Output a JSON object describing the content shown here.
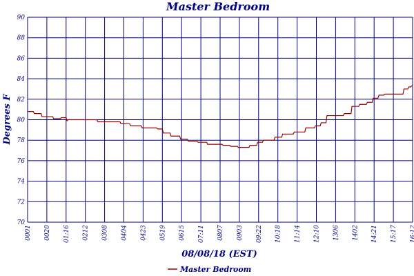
{
  "chart_data": {
    "type": "line",
    "title": "Master Bedroom",
    "xlabel": "08/08/18 (EST)",
    "ylabel": "Degrees F",
    "ylim": [
      70,
      90
    ],
    "yticks": [
      "70",
      "72",
      "74",
      "76",
      "78",
      "80",
      "82",
      "84",
      "86",
      "88",
      "90"
    ],
    "categories": [
      "0001",
      "0020",
      "01:16",
      "0212",
      "0308",
      "0404",
      "0423",
      "0519",
      "0615",
      "07:11",
      "0807",
      "0903",
      "09:22",
      "10:18",
      "11:14",
      "12:10",
      "1306",
      "1402",
      "14:21",
      "15:17",
      "16:12"
    ],
    "grid": true,
    "legend_position": "bottom-center",
    "colors": {
      "line": "#990000",
      "grid": "#000080",
      "text": "#000080"
    },
    "series": [
      {
        "name": "Master Bedroom",
        "values": [
          [
            0.0,
            80.8
          ],
          [
            0.3,
            80.8
          ],
          [
            0.35,
            80.6
          ],
          [
            0.7,
            80.6
          ],
          [
            0.75,
            80.3
          ],
          [
            1.3,
            80.3
          ],
          [
            1.35,
            80.1
          ],
          [
            1.7,
            80.1
          ],
          [
            1.75,
            80.2
          ],
          [
            2.0,
            80.2
          ],
          [
            2.05,
            79.9
          ],
          [
            2.1,
            80.0
          ],
          [
            3.6,
            80.0
          ],
          [
            3.65,
            79.8
          ],
          [
            4.8,
            79.8
          ],
          [
            4.85,
            79.6
          ],
          [
            5.3,
            79.6
          ],
          [
            5.35,
            79.4
          ],
          [
            5.9,
            79.4
          ],
          [
            5.95,
            79.2
          ],
          [
            6.7,
            79.2
          ],
          [
            6.75,
            79.1
          ],
          [
            7.0,
            79.1
          ],
          [
            7.05,
            78.7
          ],
          [
            7.4,
            78.7
          ],
          [
            7.45,
            78.4
          ],
          [
            7.9,
            78.4
          ],
          [
            7.95,
            78.1
          ],
          [
            8.3,
            78.1
          ],
          [
            8.35,
            77.9
          ],
          [
            8.8,
            77.9
          ],
          [
            8.85,
            77.8
          ],
          [
            9.3,
            77.8
          ],
          [
            9.35,
            77.6
          ],
          [
            10.1,
            77.6
          ],
          [
            10.15,
            77.5
          ],
          [
            10.5,
            77.5
          ],
          [
            10.55,
            77.4
          ],
          [
            10.9,
            77.4
          ],
          [
            10.95,
            77.3
          ],
          [
            11.5,
            77.3
          ],
          [
            11.55,
            77.5
          ],
          [
            11.9,
            77.5
          ],
          [
            11.95,
            77.8
          ],
          [
            12.2,
            77.8
          ],
          [
            12.25,
            78.0
          ],
          [
            12.8,
            78.0
          ],
          [
            12.85,
            78.3
          ],
          [
            13.2,
            78.3
          ],
          [
            13.25,
            78.6
          ],
          [
            13.8,
            78.6
          ],
          [
            13.85,
            78.8
          ],
          [
            14.4,
            78.8
          ],
          [
            14.45,
            79.2
          ],
          [
            14.9,
            79.2
          ],
          [
            14.95,
            79.4
          ],
          [
            15.2,
            79.4
          ],
          [
            15.25,
            79.7
          ],
          [
            15.5,
            79.7
          ],
          [
            15.55,
            80.4
          ],
          [
            16.4,
            80.4
          ],
          [
            16.45,
            80.6
          ],
          [
            16.8,
            80.6
          ],
          [
            16.85,
            81.3
          ],
          [
            17.2,
            81.3
          ],
          [
            17.25,
            81.5
          ],
          [
            17.6,
            81.5
          ],
          [
            17.65,
            81.7
          ],
          [
            17.9,
            81.7
          ],
          [
            17.95,
            82.1
          ],
          [
            18.2,
            82.1
          ],
          [
            18.25,
            82.4
          ],
          [
            18.5,
            82.4
          ],
          [
            18.55,
            82.5
          ],
          [
            19.5,
            82.5
          ],
          [
            19.55,
            83.0
          ],
          [
            19.75,
            83.0
          ],
          [
            19.8,
            83.2
          ],
          [
            19.9,
            83.2
          ],
          [
            19.95,
            83.3
          ],
          [
            20.0,
            83.3
          ]
        ]
      }
    ]
  }
}
